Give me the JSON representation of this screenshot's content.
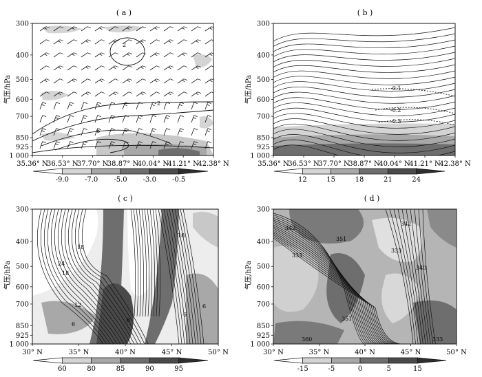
{
  "colors": {
    "ink": "#111111",
    "gray_light": "#d4d4d4",
    "gray_mid": "#a8a8a8",
    "gray_dark": "#6e6e6e",
    "gray_darker": "#4a4a4a"
  },
  "chart_data": [
    {
      "type": "contour",
      "panel_label": "( a )",
      "ylabel": "气压/hPa",
      "y_ticks": [
        "300",
        "400",
        "500",
        "600",
        "700",
        "850",
        "925",
        "1 000"
      ],
      "y_values": [
        300,
        400,
        500,
        600,
        700,
        850,
        925,
        1000
      ],
      "x_ticks": [
        "35.36° N",
        "36.53° N",
        "37.70° N",
        "38.87° N",
        "40.04° N",
        "41.21° N",
        "42.38° N"
      ],
      "colorbar": [
        "-9.0",
        "-7.0",
        "-5.0",
        "-3.0",
        "-0.5"
      ],
      "contour_labels": [
        "2",
        "2",
        "6"
      ],
      "overlays": "wind barbs"
    },
    {
      "type": "streamline",
      "panel_label": "( b )",
      "ylabel": "气压/hPa",
      "y_ticks": [
        "300",
        "400",
        "500",
        "600",
        "700",
        "850",
        "925",
        "1 000"
      ],
      "y_values": [
        300,
        400,
        500,
        600,
        700,
        850,
        925,
        1000
      ],
      "x_ticks": [
        "35.36° N",
        "36.53° N",
        "37.70° N",
        "38.87° N",
        "40.04° N",
        "41.21° N",
        "42.38° N"
      ],
      "colorbar": [
        "12",
        "15",
        "18",
        "21",
        "24"
      ],
      "contour_labels": [
        "-0.1",
        "-0.2",
        "-0.3"
      ]
    },
    {
      "type": "contour",
      "panel_label": "( c )",
      "ylabel": "气压/hPa",
      "y_ticks": [
        "300",
        "400",
        "500",
        "600",
        "700",
        "850",
        "925",
        "1 000"
      ],
      "y_values": [
        300,
        400,
        500,
        600,
        700,
        850,
        925,
        1000
      ],
      "x_ticks": [
        "30° N",
        "35° N",
        "40° N",
        "45° N",
        "50° N"
      ],
      "colorbar": [
        "60",
        "80",
        "85",
        "90",
        "95"
      ],
      "contour_labels": [
        "18",
        "24",
        "18",
        "12",
        "6",
        "6",
        "18",
        "6",
        "6"
      ]
    },
    {
      "type": "contour",
      "panel_label": "( d )",
      "ylabel": "气压/hPa",
      "y_ticks": [
        "300",
        "400",
        "500",
        "600",
        "700",
        "850",
        "925",
        "1 000"
      ],
      "y_values": [
        300,
        400,
        500,
        600,
        700,
        850,
        925,
        1000
      ],
      "x_ticks": [
        "30° N",
        "35° N",
        "40° N",
        "45° N",
        "50° N"
      ],
      "colorbar": [
        "-15",
        "-5",
        "0",
        "5",
        "15"
      ],
      "contour_labels": [
        "342",
        "351",
        "342",
        "333",
        "333",
        "340",
        "351",
        "360",
        "333"
      ]
    }
  ]
}
